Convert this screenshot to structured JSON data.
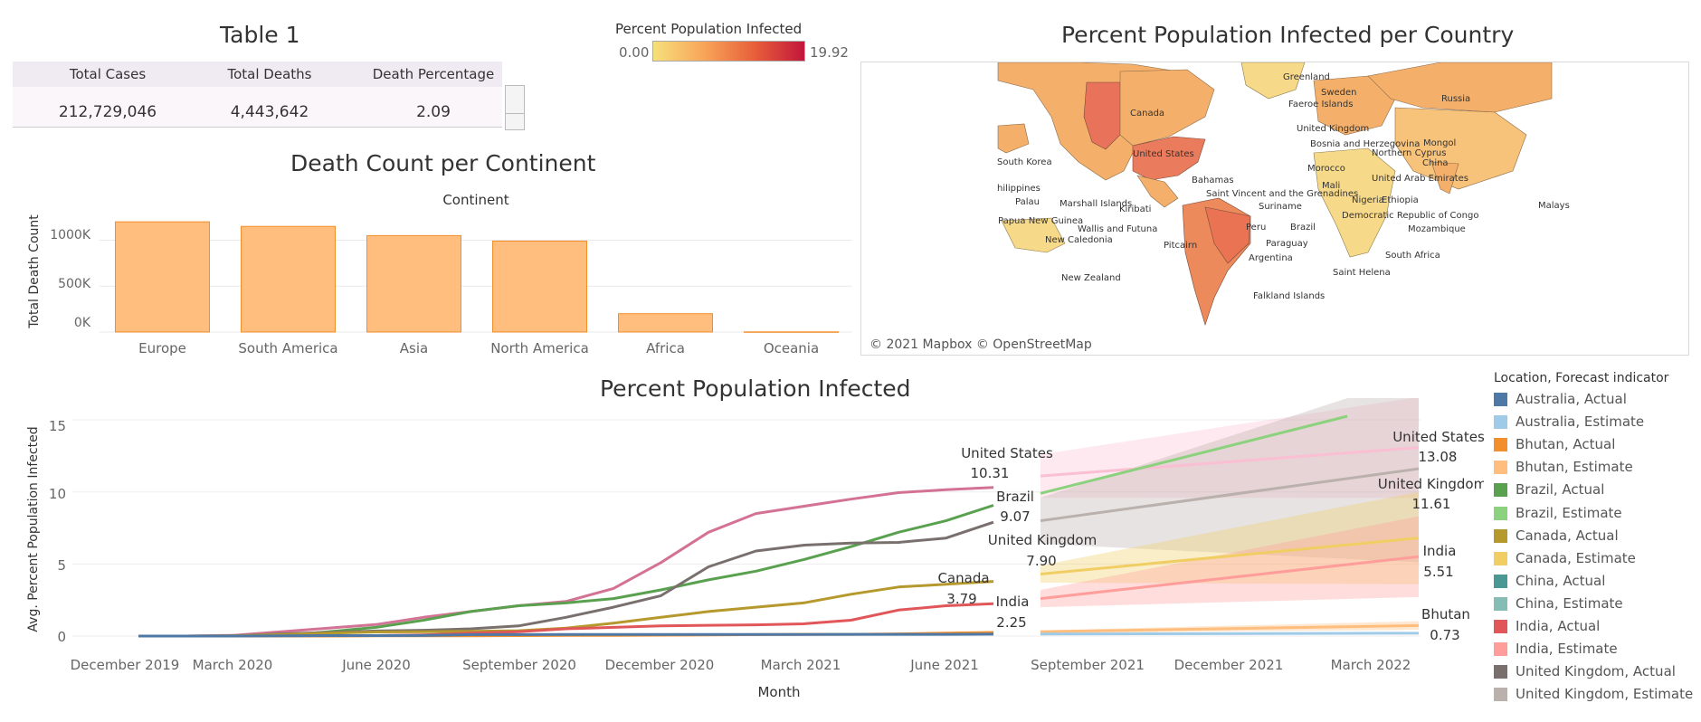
{
  "table1": {
    "title": "Table 1",
    "headers": [
      "Total Cases",
      "Total Deaths",
      "Death Percentage"
    ],
    "values": [
      "212,729,046",
      "4,443,642",
      "2.09"
    ]
  },
  "color_legend": {
    "title": "Percent Population Infected",
    "min": "0.00",
    "max": "19.92"
  },
  "map": {
    "title": "Percent Population Infected per Country",
    "credit": "© 2021 Mapbox © OpenStreetMap",
    "labels": [
      "Greenland",
      "Sweden",
      "Faeroe Islands",
      "Russia",
      "Canada",
      "United Kingdom",
      "Bosnia and Herzegovina",
      "Mongol",
      "Northern Cyprus",
      "China",
      "United States",
      "Morocco",
      "South Korea",
      "Mali",
      "United Arab Emirates",
      "Bahamas",
      "Saint Vincent and the Grenadines",
      "Nigeria",
      "Ethiopia",
      "hilippines",
      "Palau",
      "Marshall Islands",
      "Kiribati",
      "Suriname",
      "Democratic Republic of Congo",
      "Malays",
      "Papua New Guinea",
      "Wallis and Futuna",
      "Peru",
      "Brazil",
      "Mozambique",
      "New Caledonia",
      "Pitcairn",
      "Paraguay",
      "Argentina",
      "South Africa",
      "Saint Helena",
      "New Zealand",
      "Falkland Islands"
    ]
  },
  "death_chart": {
    "title": "Death Count per Continent",
    "header": "Continent",
    "ylabel": "Total Death Count",
    "yticks": [
      "1000K",
      "500K",
      "0K"
    ]
  },
  "line_chart": {
    "title": "Percent Population Infected",
    "ylabel": "Avg. Percent Population Infected",
    "xlabel": "Month",
    "yticks": [
      "15",
      "10",
      "5",
      "0"
    ],
    "xticks": [
      "December 2019",
      "March 2020",
      "June 2020",
      "September 2020",
      "December 2020",
      "March 2021",
      "June 2021",
      "September 2021",
      "December 2021",
      "March 2022"
    ],
    "annotations": [
      {
        "name": "United States",
        "value": "10.31"
      },
      {
        "name": "Brazil",
        "value": "9.07"
      },
      {
        "name": "United Kingdom",
        "value": "7.90"
      },
      {
        "name": "Canada",
        "value": "3.79"
      },
      {
        "name": "India",
        "value": "2.25"
      },
      {
        "name": "United States",
        "value": "13.08"
      },
      {
        "name": "United Kingdom",
        "value": "11.61"
      },
      {
        "name": "India",
        "value": "5.51"
      },
      {
        "name": "Bhutan",
        "value": "0.73"
      }
    ]
  },
  "series_legend": {
    "title": "Location, Forecast indicator",
    "items": [
      {
        "label": "Australia, Actual",
        "color": "#4e79a7"
      },
      {
        "label": "Australia, Estimate",
        "color": "#a0cbe8"
      },
      {
        "label": "Bhutan, Actual",
        "color": "#f28e2b"
      },
      {
        "label": "Bhutan, Estimate",
        "color": "#ffbe7d"
      },
      {
        "label": "Brazil, Actual",
        "color": "#59a14f"
      },
      {
        "label": "Brazil, Estimate",
        "color": "#8cd17d"
      },
      {
        "label": "Canada, Actual",
        "color": "#b6992d"
      },
      {
        "label": "Canada, Estimate",
        "color": "#f1ce63"
      },
      {
        "label": "China, Actual",
        "color": "#499894"
      },
      {
        "label": "China, Estimate",
        "color": "#86bcb6"
      },
      {
        "label": "India, Actual",
        "color": "#e15759"
      },
      {
        "label": "India, Estimate",
        "color": "#ff9d9a"
      },
      {
        "label": "United Kingdom, Actual",
        "color": "#79706e"
      },
      {
        "label": "United Kingdom, Estimate",
        "color": "#bab0ac"
      }
    ]
  },
  "colors": {
    "bar_fill": "#ffbe7d",
    "bar_stroke": "#f28e2b",
    "united_states_actual": "#d37295",
    "united_states_estimate": "#fabfd2"
  },
  "chart_data": [
    {
      "type": "bar",
      "title": "Death Count per Continent",
      "xlabel": "Continent",
      "ylabel": "Total Death Count",
      "categories": [
        "Europe",
        "South America",
        "Asia",
        "North America",
        "Africa",
        "Oceania"
      ],
      "values": [
        1200000,
        1150000,
        1050000,
        990000,
        200000,
        2000
      ],
      "ylim": [
        0,
        1300000
      ]
    },
    {
      "type": "line",
      "title": "Percent Population Infected",
      "xlabel": "Month",
      "ylabel": "Avg. Percent Population Infected",
      "ylim": [
        -0.5,
        16
      ],
      "x": [
        "2020-01",
        "2020-02",
        "2020-03",
        "2020-04",
        "2020-05",
        "2020-06",
        "2020-07",
        "2020-08",
        "2020-09",
        "2020-10",
        "2020-11",
        "2020-12",
        "2021-01",
        "2021-02",
        "2021-03",
        "2021-04",
        "2021-05",
        "2021-06",
        "2021-07"
      ],
      "series": [
        {
          "name": "United States, Actual",
          "values": [
            0,
            0,
            0.05,
            0.3,
            0.55,
            0.8,
            1.3,
            1.7,
            2.1,
            2.4,
            3.3,
            5.1,
            7.2,
            8.5,
            9.0,
            9.5,
            9.95,
            10.15,
            10.31
          ]
        },
        {
          "name": "Brazil, Actual",
          "values": [
            0,
            0,
            0,
            0.05,
            0.3,
            0.6,
            1.1,
            1.7,
            2.1,
            2.3,
            2.6,
            3.2,
            3.9,
            4.5,
            5.3,
            6.2,
            7.2,
            8.0,
            9.07
          ]
        },
        {
          "name": "United Kingdom, Actual",
          "values": [
            0,
            0,
            0.02,
            0.15,
            0.25,
            0.35,
            0.4,
            0.5,
            0.7,
            1.3,
            2.0,
            2.8,
            4.8,
            5.9,
            6.3,
            6.45,
            6.5,
            6.8,
            7.9
          ]
        },
        {
          "name": "Canada, Actual",
          "values": [
            0,
            0,
            0.01,
            0.1,
            0.2,
            0.28,
            0.3,
            0.33,
            0.37,
            0.55,
            0.9,
            1.3,
            1.7,
            2.0,
            2.3,
            2.9,
            3.4,
            3.6,
            3.79
          ]
        },
        {
          "name": "India, Actual",
          "values": [
            0,
            0,
            0,
            0.002,
            0.01,
            0.03,
            0.08,
            0.2,
            0.3,
            0.5,
            0.6,
            0.7,
            0.75,
            0.78,
            0.85,
            1.1,
            1.8,
            2.1,
            2.25
          ]
        },
        {
          "name": "Bhutan, Actual",
          "values": [
            0,
            0,
            0,
            0,
            0,
            0.01,
            0.01,
            0.02,
            0.03,
            0.05,
            0.05,
            0.06,
            0.08,
            0.1,
            0.12,
            0.12,
            0.15,
            0.2,
            0.25
          ]
        },
        {
          "name": "Australia, Actual",
          "values": [
            0,
            0,
            0,
            0.02,
            0.03,
            0.03,
            0.04,
            0.1,
            0.1,
            0.11,
            0.11,
            0.11,
            0.11,
            0.11,
            0.11,
            0.12,
            0.12,
            0.12,
            0.13
          ]
        }
      ],
      "estimates": {
        "x": [
          "2021-08",
          "2022-04"
        ],
        "series": [
          {
            "name": "United States, Estimate",
            "values": [
              11.1,
              13.08
            ]
          },
          {
            "name": "Brazil, Estimate",
            "values": [
              9.9,
              16.5
            ]
          },
          {
            "name": "United Kingdom, Estimate",
            "values": [
              8.0,
              11.61
            ]
          },
          {
            "name": "Canada, Estimate",
            "values": [
              4.3,
              6.8
            ]
          },
          {
            "name": "India, Estimate",
            "values": [
              2.6,
              5.51
            ]
          },
          {
            "name": "Bhutan, Estimate",
            "values": [
              0.3,
              0.73
            ]
          },
          {
            "name": "Australia, Estimate",
            "values": [
              0.14,
              0.2
            ]
          }
        ]
      }
    }
  ]
}
